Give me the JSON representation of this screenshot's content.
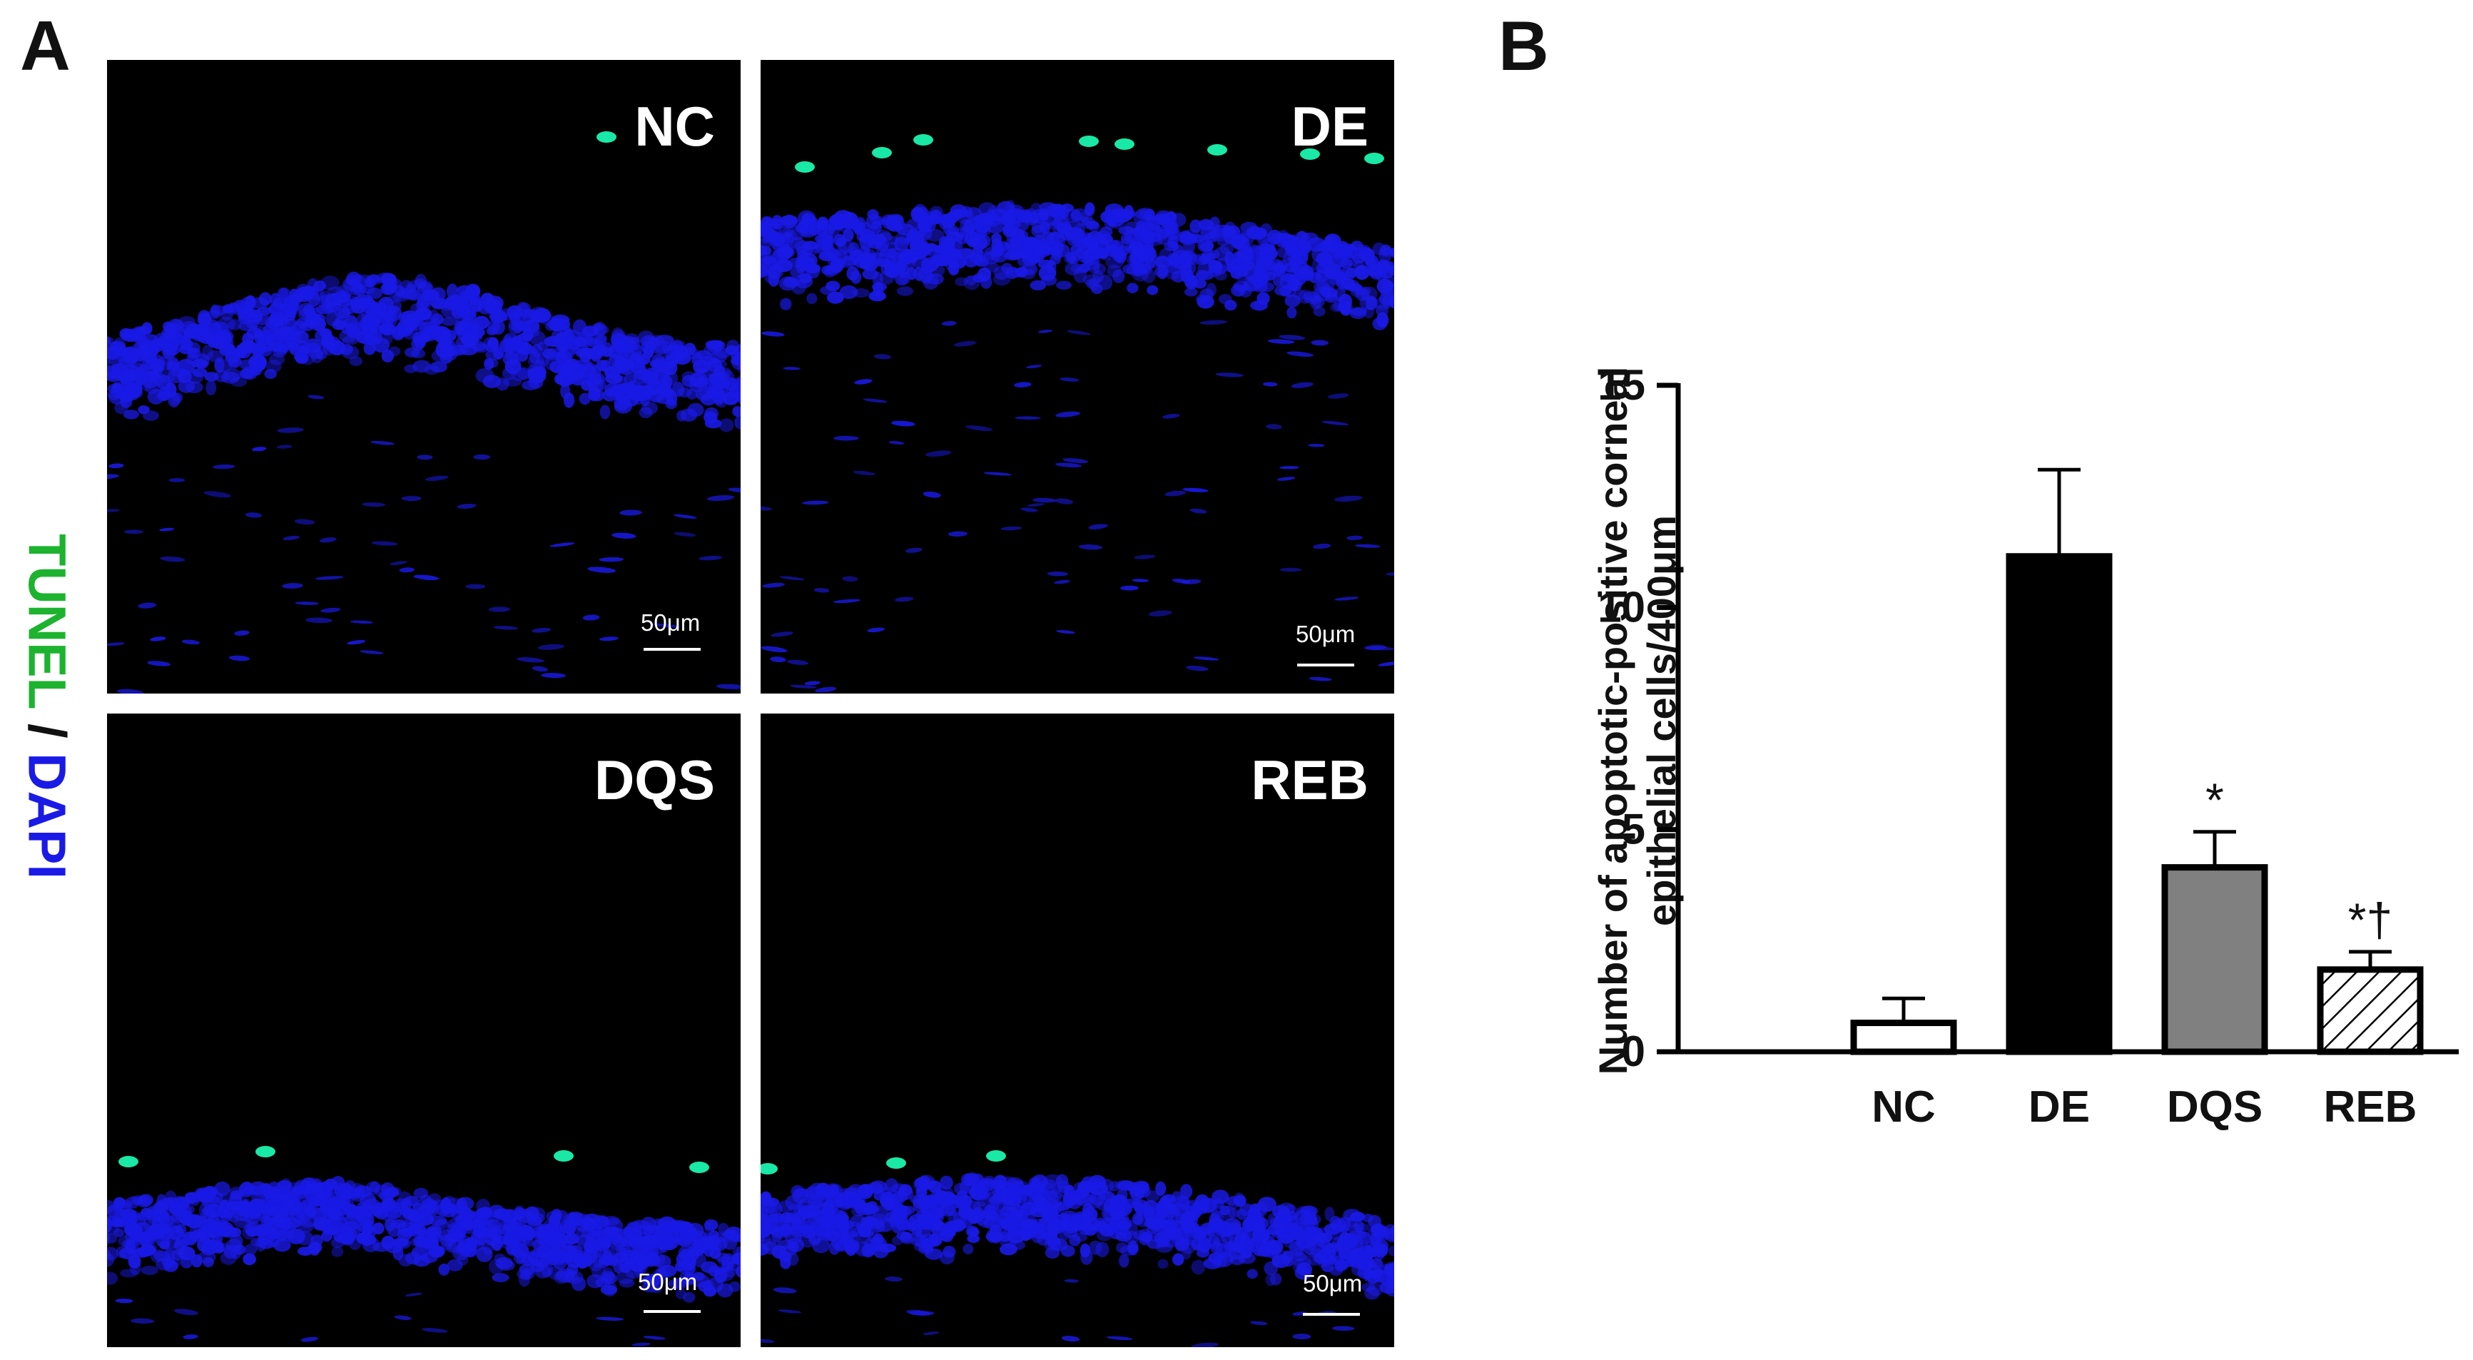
{
  "panel_a": {
    "letter": "A",
    "stain_legend": {
      "tunel": "TUNEL",
      "separator": " / ",
      "dapi": "DAPI"
    },
    "colors": {
      "tunel": "#1db32f",
      "dapi": "#1a1ae6",
      "nuclei": "#1a1ae6",
      "tunel_cells": "#19e8a6"
    },
    "images": [
      {
        "label": "NC",
        "scale_bar": "50μm"
      },
      {
        "label": "DE",
        "scale_bar": "50μm"
      },
      {
        "label": "DQS",
        "scale_bar": "50μm"
      },
      {
        "label": "REB",
        "scale_bar": "50μm"
      }
    ]
  },
  "panel_b": {
    "letter": "B"
  },
  "chart_data": {
    "type": "bar",
    "categories": [
      "NC",
      "DE",
      "DQS",
      "REB"
    ],
    "values": [
      0.65,
      11.15,
      4.15,
      1.85
    ],
    "errors": [
      0.55,
      1.95,
      0.8,
      0.4
    ],
    "annotations": [
      "",
      "",
      "*",
      "*†"
    ],
    "fills": [
      "#ffffff",
      "#000000",
      "#808080",
      "hatch"
    ],
    "ylabel": "Number of apoptotic-positive corneal epithelial cells/400μm",
    "ylim": [
      0,
      15
    ],
    "yticks": [
      0,
      5,
      10,
      15
    ],
    "grid": false
  }
}
